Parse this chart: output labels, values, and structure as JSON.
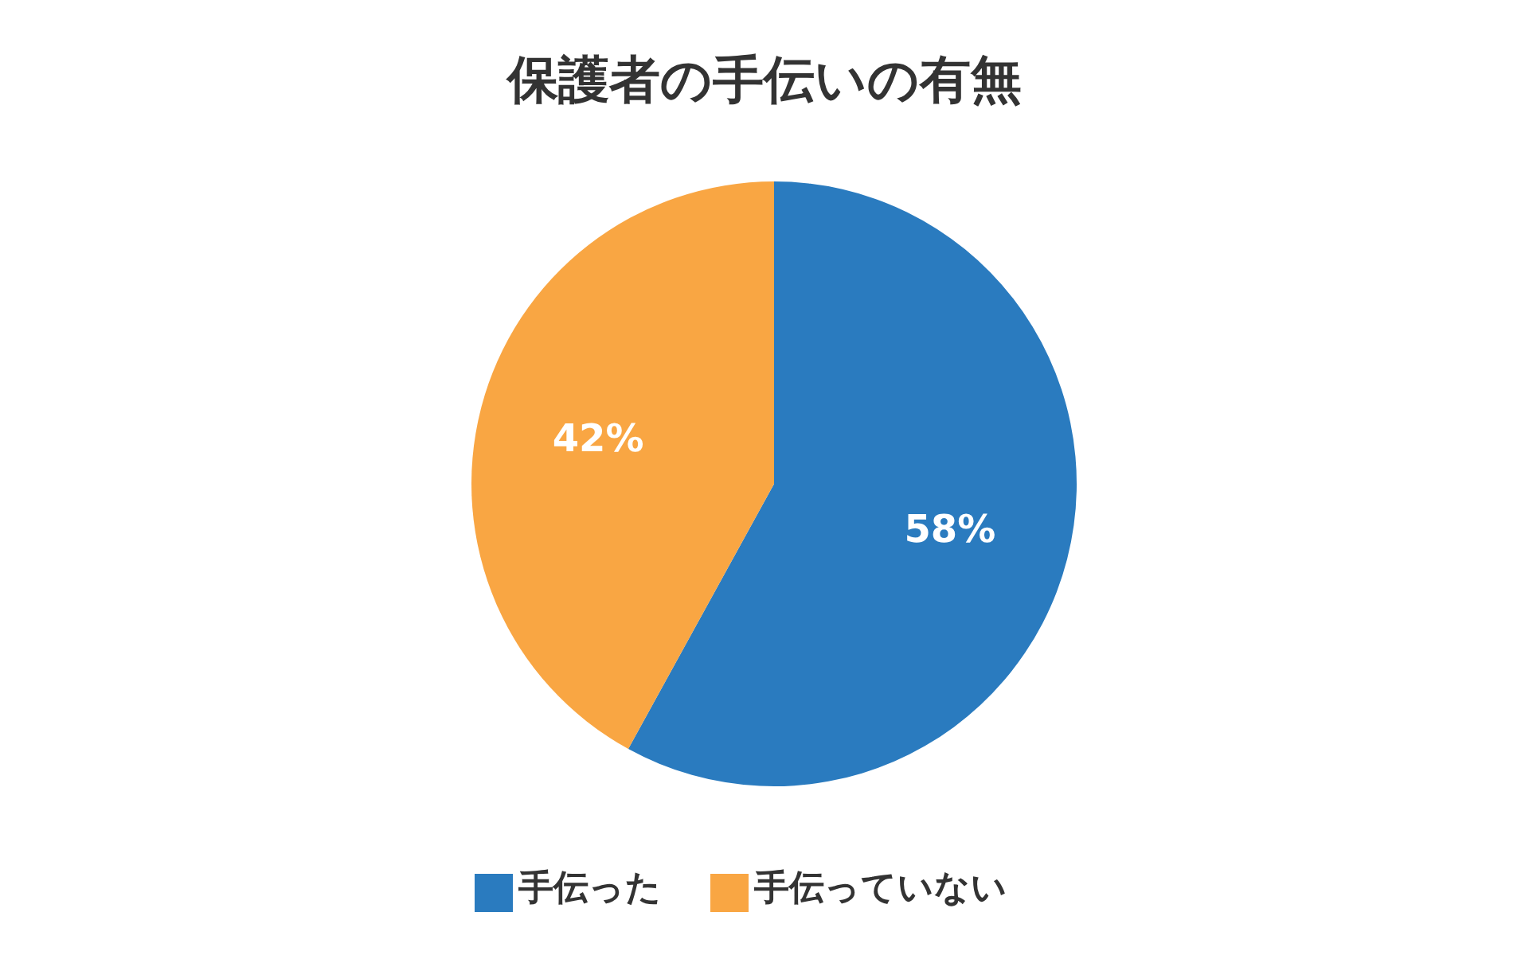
{
  "chart_data": {
    "type": "pie",
    "title": "保護者の手伝いの有無",
    "categories": [
      "手伝った",
      "手伝っていない"
    ],
    "values": [
      58,
      42
    ],
    "colors": [
      "#2a7bbf",
      "#f9a643"
    ],
    "value_labels": [
      "58%",
      "42%"
    ],
    "legend": "bottom"
  }
}
